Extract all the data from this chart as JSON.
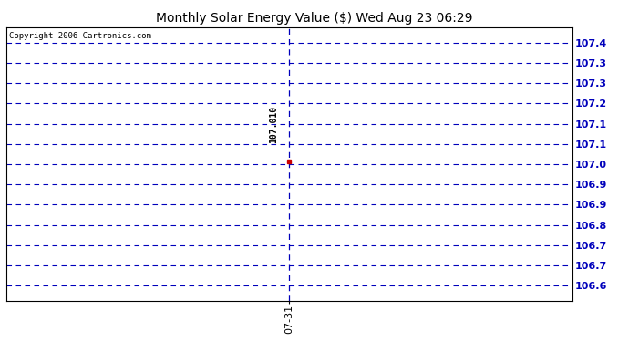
{
  "title": "Monthly Solar Energy Value ($) Wed Aug 23 06:29",
  "copyright_text": "Copyright 2006 Cartronics.com",
  "data_x": [
    0
  ],
  "data_y": [
    107.01
  ],
  "data_label": "107.010",
  "x_tick_label": "07-31",
  "ylim": [
    106.55,
    107.45
  ],
  "ytick_positions": [
    107.4,
    107.3,
    107.3,
    107.2,
    107.1,
    107.1,
    107.0,
    106.9,
    106.9,
    106.8,
    106.7,
    106.7,
    106.6
  ],
  "ytick_labels": [
    "107.4",
    "107.3",
    "107.3",
    "107.2",
    "107.1",
    "107.1",
    "107.0",
    "106.9",
    "106.9",
    "106.8",
    "106.7",
    "106.7",
    "106.6"
  ],
  "grid_color": "#0000bb",
  "line_color": "#0000bb",
  "point_color": "#cc0000",
  "background_color": "#ffffff",
  "title_fontsize": 10,
  "tick_fontsize": 8,
  "copyright_fontsize": 6.5
}
